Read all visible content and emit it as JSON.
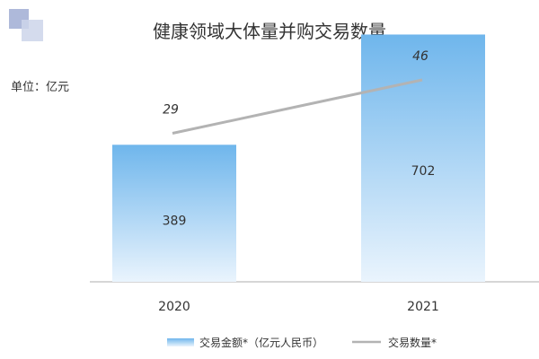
{
  "chart_data": {
    "type": "bar",
    "title": "健康领域大体量并购交易数量",
    "unit_label": "单位：亿元",
    "categories": [
      "2020",
      "2021"
    ],
    "ylim": [
      0,
      800
    ],
    "grid": false,
    "legend_position": "bottom",
    "series": [
      {
        "name": "交易金额*（亿元人民币）",
        "kind": "bar",
        "values": [
          389,
          702
        ],
        "data_labels": [
          "389",
          "702"
        ],
        "color_top": "#6fb6ec",
        "color_bottom": "#eaf4fd"
      },
      {
        "name": "交易数量*",
        "kind": "line",
        "values": [
          29,
          46
        ],
        "data_labels": [
          "29",
          "46"
        ],
        "line_ylim": [
          0,
          60
        ],
        "color": "#b3b3b3"
      }
    ]
  },
  "decoration": {
    "square_color_dark": "#aeb9da",
    "square_color_light": "#cdd5ea"
  }
}
